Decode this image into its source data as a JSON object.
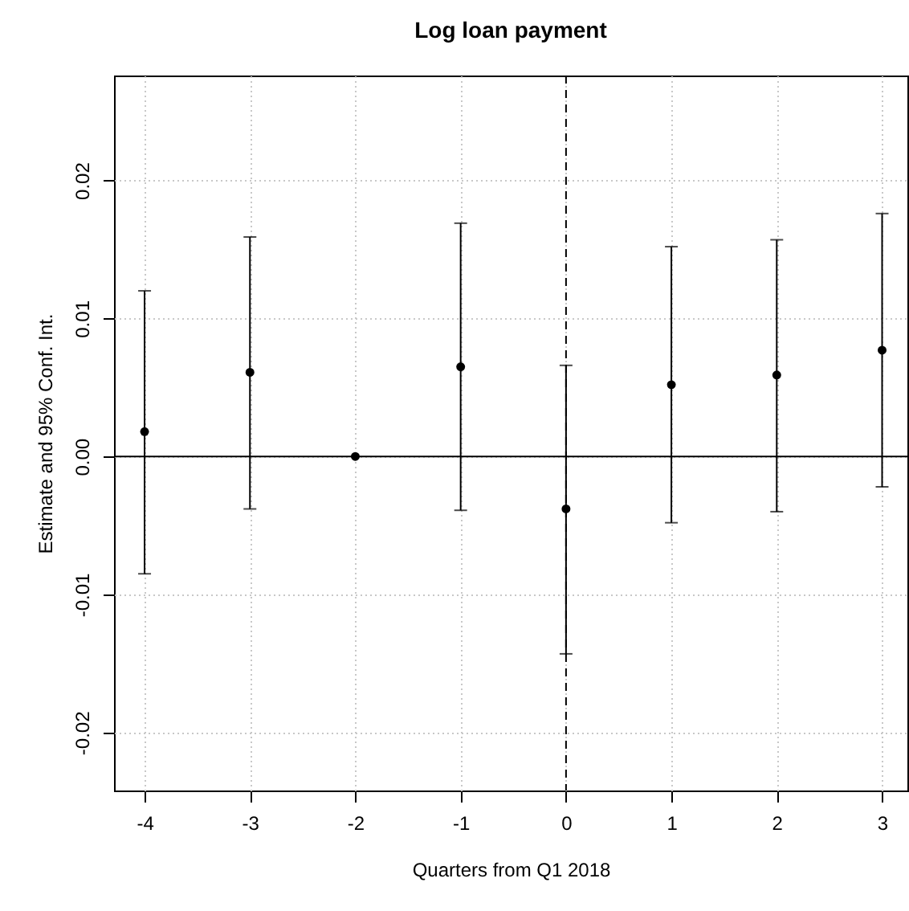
{
  "chart_data": {
    "type": "scatter",
    "title": "Log loan payment",
    "xlabel": "Quarters from Q1 2018",
    "ylabel": "Estimate and 95% Conf. Int.",
    "x": [
      -4,
      -3,
      -2,
      -1,
      0,
      1,
      2,
      3
    ],
    "series": [
      {
        "color": "#000000",
        "values": [
          0.0018,
          0.0061,
          0,
          0.0065,
          -0.0038,
          0.0052,
          0.0059,
          0.0077
        ],
        "errors": [
          [
            -0.0085,
            0.012
          ],
          [
            -0.0038,
            0.0159
          ],
          null,
          [
            -0.0039,
            0.0169
          ],
          [
            -0.0143,
            0.0066
          ],
          [
            -0.0048,
            0.0152
          ],
          [
            -0.004,
            0.0157
          ],
          [
            -0.0022,
            0.0176
          ]
        ]
      }
    ],
    "xlim": [
      -4.29,
      3.24
    ],
    "ylim": [
      -0.0242,
      0.0276
    ],
    "xticks": [
      -4,
      -3,
      -2,
      -1,
      0,
      1,
      2,
      3
    ],
    "yticks": [
      -0.02,
      -0.01,
      {
        "value": 0,
        "label": "0.00"
      },
      0.01,
      0.02
    ],
    "ref_lines": [
      {
        "axis": "y",
        "value": 0,
        "color": "#000000",
        "line_style": "solid"
      },
      {
        "axis": "x",
        "value": 0,
        "color": "#000000",
        "line_style": "dashed"
      }
    ],
    "grid": true,
    "marker": "circle"
  }
}
